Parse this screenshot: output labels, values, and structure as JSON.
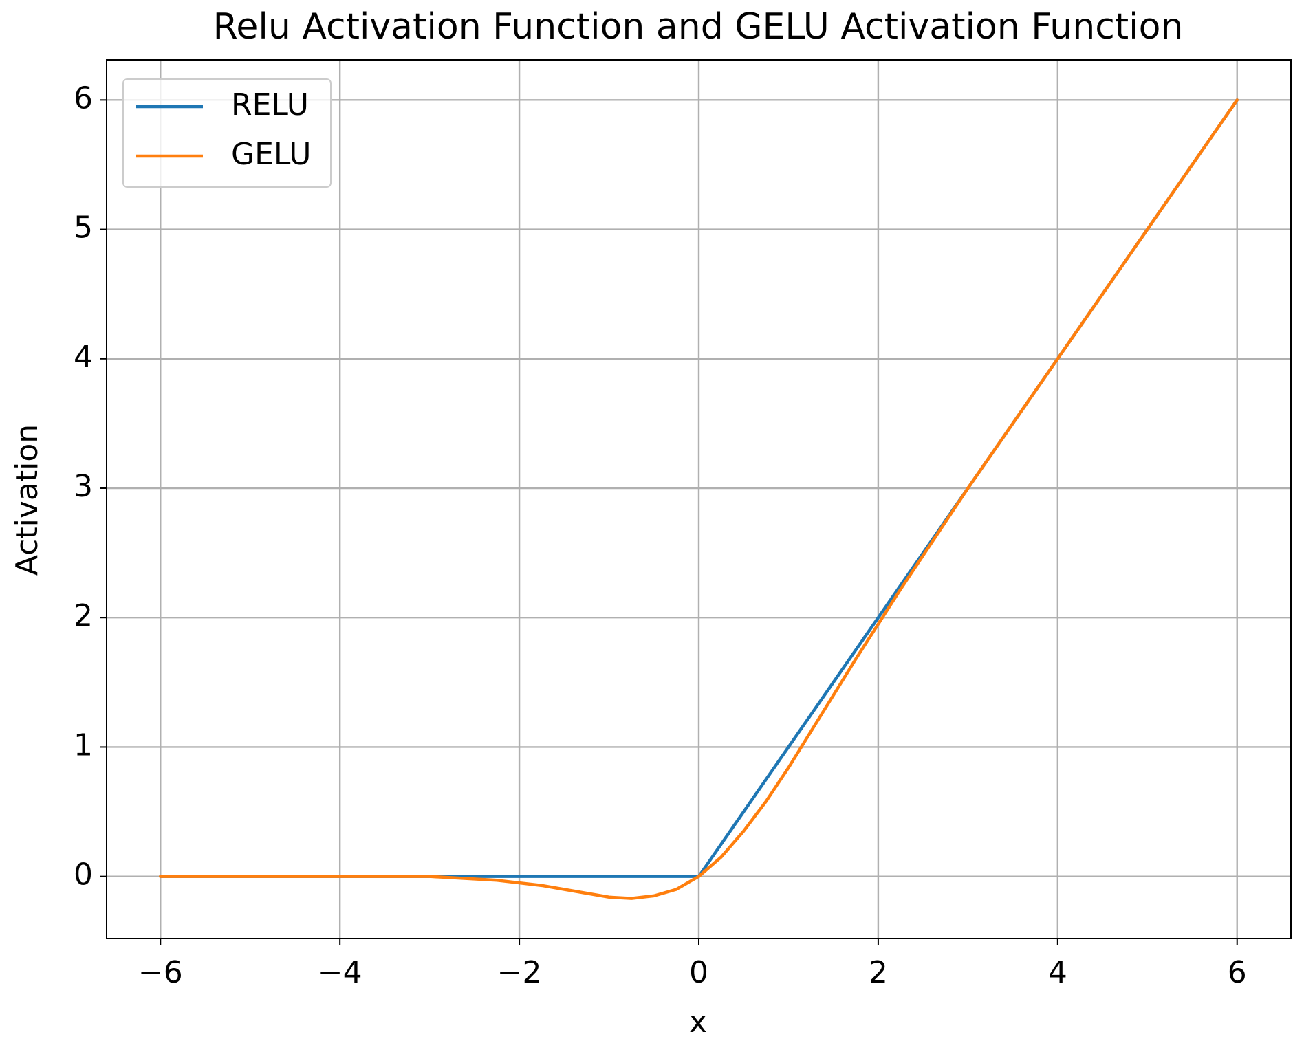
{
  "chart_data": {
    "type": "line",
    "title": "Relu Activation Function and GELU Activation Function",
    "x_label": "x",
    "y_label": "Activation",
    "x": [
      -6,
      -5.75,
      -5.5,
      -5.25,
      -5,
      -4.75,
      -4.5,
      -4.25,
      -4,
      -3.75,
      -3.5,
      -3.25,
      -3,
      -2.75,
      -2.5,
      -2.25,
      -2,
      -1.75,
      -1.5,
      -1.25,
      -1,
      -0.75,
      -0.5,
      -0.25,
      0,
      0.25,
      0.5,
      0.75,
      1,
      1.25,
      1.5,
      1.75,
      2,
      2.25,
      2.5,
      2.75,
      3,
      3.25,
      3.5,
      3.75,
      4,
      4.25,
      4.5,
      4.75,
      5,
      5.25,
      5.5,
      5.75,
      6
    ],
    "series": [
      {
        "name": "RELU",
        "color": "#1f77b4",
        "values": [
          0,
          0,
          0,
          0,
          0,
          0,
          0,
          0,
          0,
          0,
          0,
          0,
          0,
          0,
          0,
          0,
          0,
          0,
          0,
          0,
          0,
          0,
          0,
          0,
          0,
          0.25,
          0.5,
          0.75,
          1,
          1.25,
          1.5,
          1.75,
          2,
          2.25,
          2.5,
          2.75,
          3,
          3.25,
          3.5,
          3.75,
          4,
          4.25,
          4.5,
          4.75,
          5,
          5.25,
          5.5,
          5.75,
          6
        ]
      },
      {
        "name": "GELU",
        "color": "#ff7f0e",
        "values": [
          0,
          0,
          0,
          0,
          0,
          0,
          0,
          0,
          0,
          0,
          0,
          0,
          0,
          -0.01,
          -0.02,
          -0.03,
          -0.05,
          -0.07,
          -0.1,
          -0.13,
          -0.16,
          -0.17,
          -0.15,
          -0.1,
          0,
          0.15,
          0.35,
          0.58,
          0.84,
          1.12,
          1.4,
          1.68,
          1.95,
          2.22,
          2.48,
          2.74,
          3,
          3.25,
          3.5,
          3.75,
          4,
          4.25,
          4.5,
          4.75,
          5,
          5.25,
          5.5,
          5.75,
          6
        ]
      }
    ],
    "xlim": [
      -6.6,
      6.6
    ],
    "ylim": [
      -0.48,
      6.31
    ],
    "xticks": [
      {
        "value": -6,
        "label": "−6"
      },
      {
        "value": -4,
        "label": "−4"
      },
      {
        "value": -2,
        "label": "−2"
      },
      0,
      2,
      4,
      6
    ],
    "yticks": [
      0,
      1,
      2,
      3,
      4,
      5,
      6
    ],
    "grid": true,
    "legend": "upper left"
  }
}
